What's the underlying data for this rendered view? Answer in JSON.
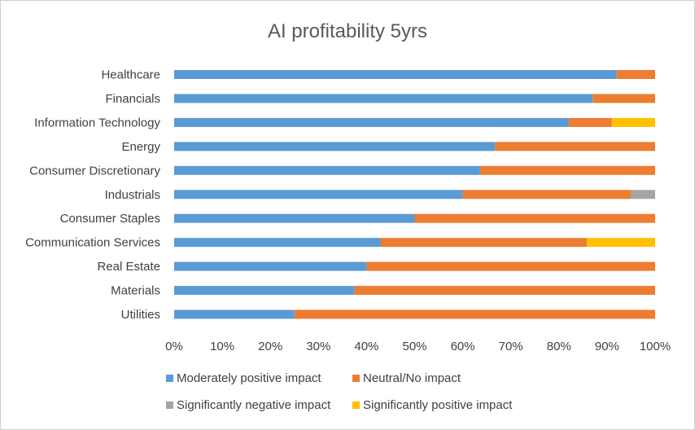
{
  "chart_data": {
    "type": "bar",
    "orientation": "horizontal",
    "stacked": "percent",
    "title": "AI profitability 5yrs",
    "categories": [
      "Healthcare",
      "Financials",
      "Information Technology",
      "Energy",
      "Consumer Discretionary",
      "Industrials",
      "Consumer Staples",
      "Communication Services",
      "Real Estate",
      "Materials",
      "Utilities"
    ],
    "series": [
      {
        "name": "Moderately positive impact",
        "color": "#5B9BD5",
        "values": [
          92,
          87,
          82,
          66.7,
          63.6,
          60,
          50,
          42.9,
          40,
          37.5,
          25
        ]
      },
      {
        "name": "Neutral/No impact",
        "color": "#ED7D31",
        "values": [
          8,
          13,
          9,
          33.3,
          36.4,
          35,
          50,
          42.9,
          60,
          62.5,
          75
        ]
      },
      {
        "name": "Significantly negative impact",
        "color": "#A5A5A5",
        "values": [
          0,
          0,
          0,
          0,
          0,
          5,
          0,
          0,
          0,
          0,
          0
        ]
      },
      {
        "name": "Significantly positive impact",
        "color": "#FFC000",
        "values": [
          0,
          0,
          9,
          0,
          0,
          0,
          0,
          14.2,
          0,
          0,
          0
        ]
      }
    ],
    "xlim": [
      0,
      100
    ],
    "x_ticks": [
      "0%",
      "10%",
      "20%",
      "30%",
      "40%",
      "50%",
      "60%",
      "70%",
      "80%",
      "90%",
      "100%"
    ],
    "grid": false,
    "legend_position": "bottom"
  }
}
